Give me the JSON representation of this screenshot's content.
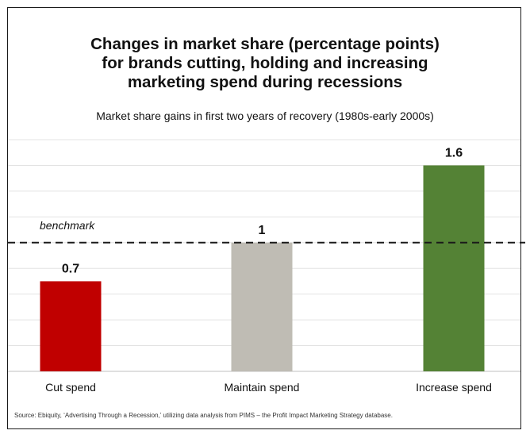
{
  "title_lines": [
    "Changes in market share (percentage points)",
    "for brands cutting, holding and increasing",
    "marketing spend during recessions"
  ],
  "subtitle": "Market share gains in first two years of recovery (1980s-early 2000s)",
  "source": "Source:  Ebiquity, ‘Advertising Through a Recession,’ utilizing data analysis from PIMS – the Profit Impact Marketing Strategy database.",
  "chart_data": {
    "type": "bar",
    "categories": [
      "Cut spend",
      "Maintain spend",
      "Increase spend"
    ],
    "values": [
      0.7,
      1,
      1.6
    ],
    "data_labels": [
      "0.7",
      "1",
      "1.6"
    ],
    "colors": [
      "#c00000",
      "#bfbcb4",
      "#548235"
    ],
    "ylim": [
      0,
      1.8
    ],
    "grid": true,
    "benchmark": {
      "value": 1,
      "label": "benchmark",
      "style": "dashed"
    }
  }
}
